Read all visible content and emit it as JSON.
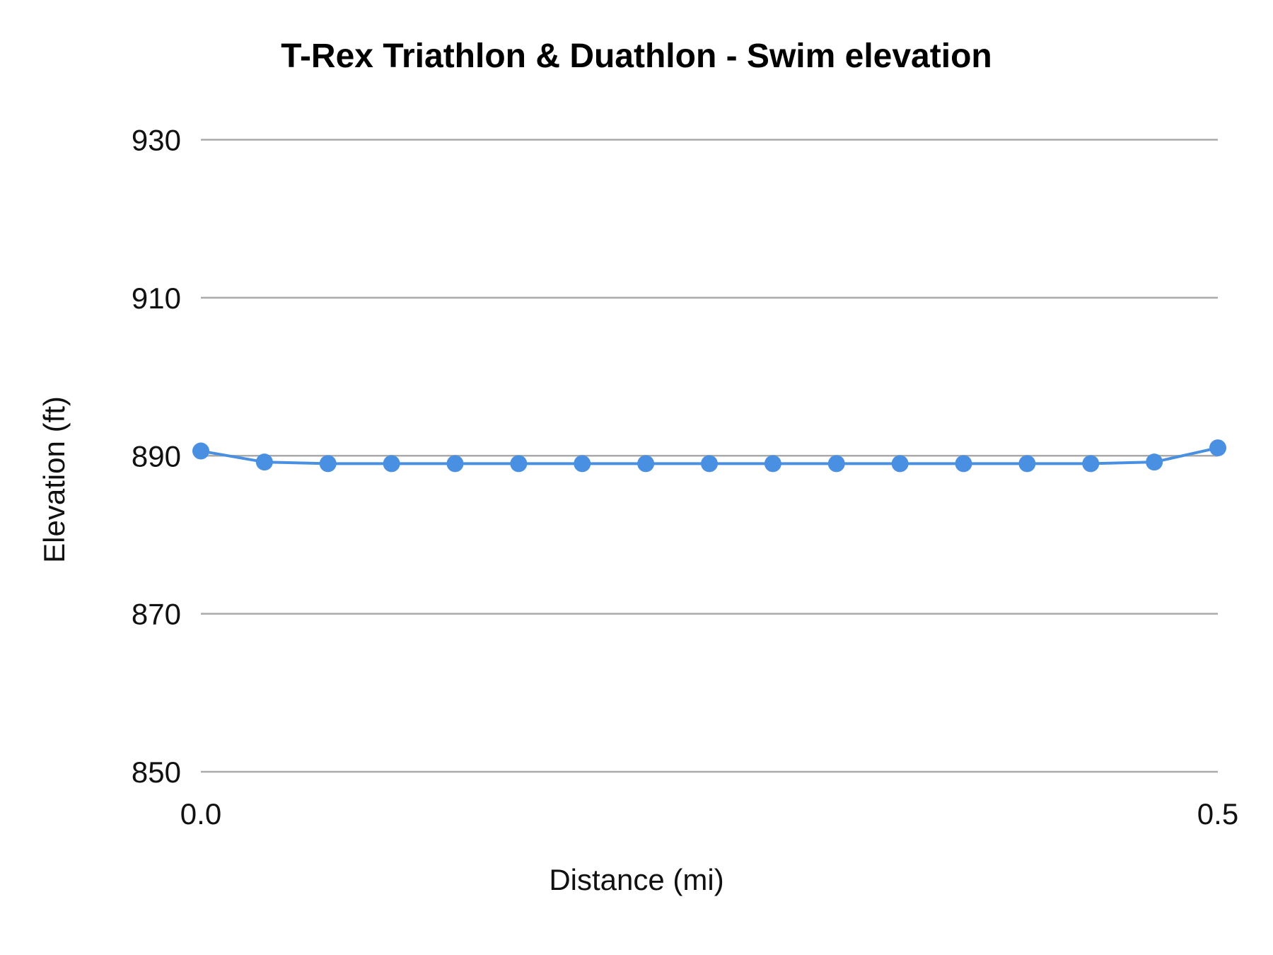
{
  "chart_data": {
    "type": "line",
    "title": "T-Rex Triathlon & Duathlon - Swim elevation",
    "xlabel": "Distance (mi)",
    "ylabel": "Elevation (ft)",
    "xlim": [
      0,
      0.5
    ],
    "ylim": [
      850,
      930
    ],
    "x_ticks": [
      "0.0",
      "0.5"
    ],
    "y_ticks": [
      "850",
      "870",
      "890",
      "910",
      "930"
    ],
    "grid": "horizontal",
    "color": "#4a90e2",
    "series": [
      {
        "x": [
          0,
          0.03125,
          0.0625,
          0.09375,
          0.125,
          0.15625,
          0.1875,
          0.21875,
          0.25,
          0.28125,
          0.3125,
          0.34375,
          0.375,
          0.40625,
          0.4375,
          0.46875,
          0.5
        ],
        "values": [
          890.6,
          889.2,
          889.0,
          889.0,
          889.0,
          889.0,
          889.0,
          889.0,
          889.0,
          889.0,
          889.0,
          889.0,
          889.0,
          889.0,
          889.0,
          889.2,
          891.0
        ]
      }
    ]
  }
}
